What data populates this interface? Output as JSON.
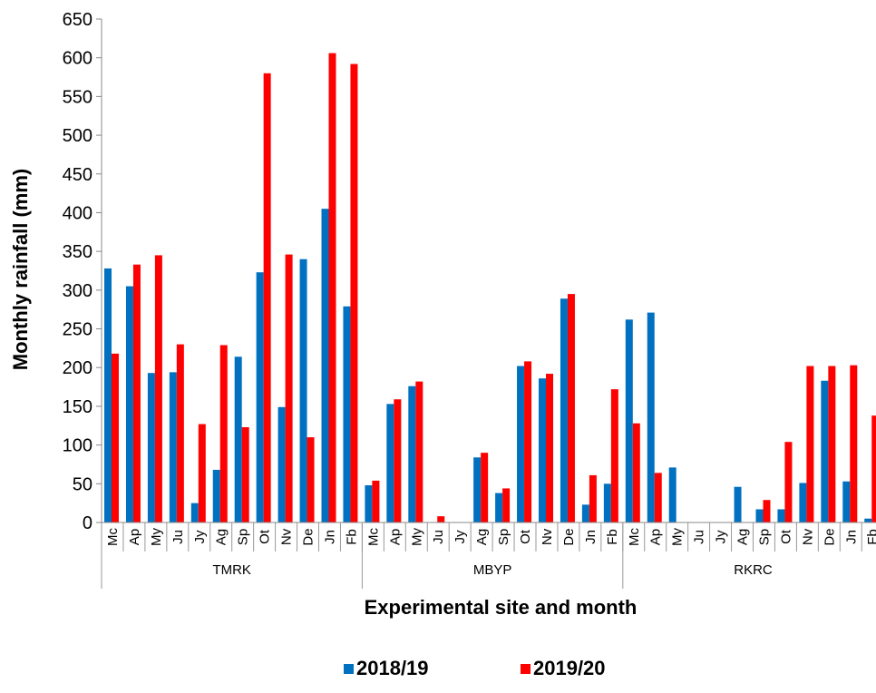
{
  "chart_data": {
    "type": "bar",
    "title": "",
    "xlabel": "Experimental site and month",
    "ylabel": "Monthly rainfall (mm)",
    "ylim": [
      0,
      650
    ],
    "y_ticks": [
      0,
      50,
      100,
      150,
      200,
      250,
      300,
      350,
      400,
      450,
      500,
      550,
      600,
      650
    ],
    "grid": false,
    "legend_position": "bottom",
    "groups": [
      {
        "name": "TMRK",
        "months": [
          "Mc",
          "Ap",
          "My",
          "Ju",
          "Jy",
          "Ag",
          "Sp",
          "Ot",
          "Nv",
          "De",
          "Jn",
          "Fb"
        ]
      },
      {
        "name": "MBYP",
        "months": [
          "Mc",
          "Ap",
          "My",
          "Ju",
          "Jy",
          "Ag",
          "Sp",
          "Ot",
          "Nv",
          "De",
          "Jn",
          "Fb"
        ]
      },
      {
        "name": "RKRC",
        "months": [
          "Mc",
          "Ap",
          "My",
          "Ju",
          "Jy",
          "Ag",
          "Sp",
          "Ot",
          "Nv",
          "De",
          "Jn",
          "Fb"
        ]
      }
    ],
    "series": [
      {
        "name": "2018/19",
        "color": "#0070c0",
        "values": [
          328,
          305,
          193,
          194,
          25,
          68,
          214,
          323,
          149,
          340,
          405,
          279,
          48,
          153,
          176,
          0,
          0,
          84,
          38,
          202,
          186,
          289,
          23,
          50,
          262,
          271,
          71,
          0,
          0,
          46,
          17,
          17,
          51,
          183,
          53,
          5
        ]
      },
      {
        "name": "2019/20",
        "color": "#ff0000",
        "values": [
          218,
          333,
          345,
          230,
          127,
          229,
          123,
          580,
          346,
          110,
          606,
          592,
          54,
          159,
          182,
          8,
          0,
          90,
          44,
          208,
          192,
          295,
          61,
          172,
          128,
          64,
          0,
          0,
          0,
          0,
          29,
          104,
          202,
          202,
          203,
          138
        ]
      }
    ]
  }
}
